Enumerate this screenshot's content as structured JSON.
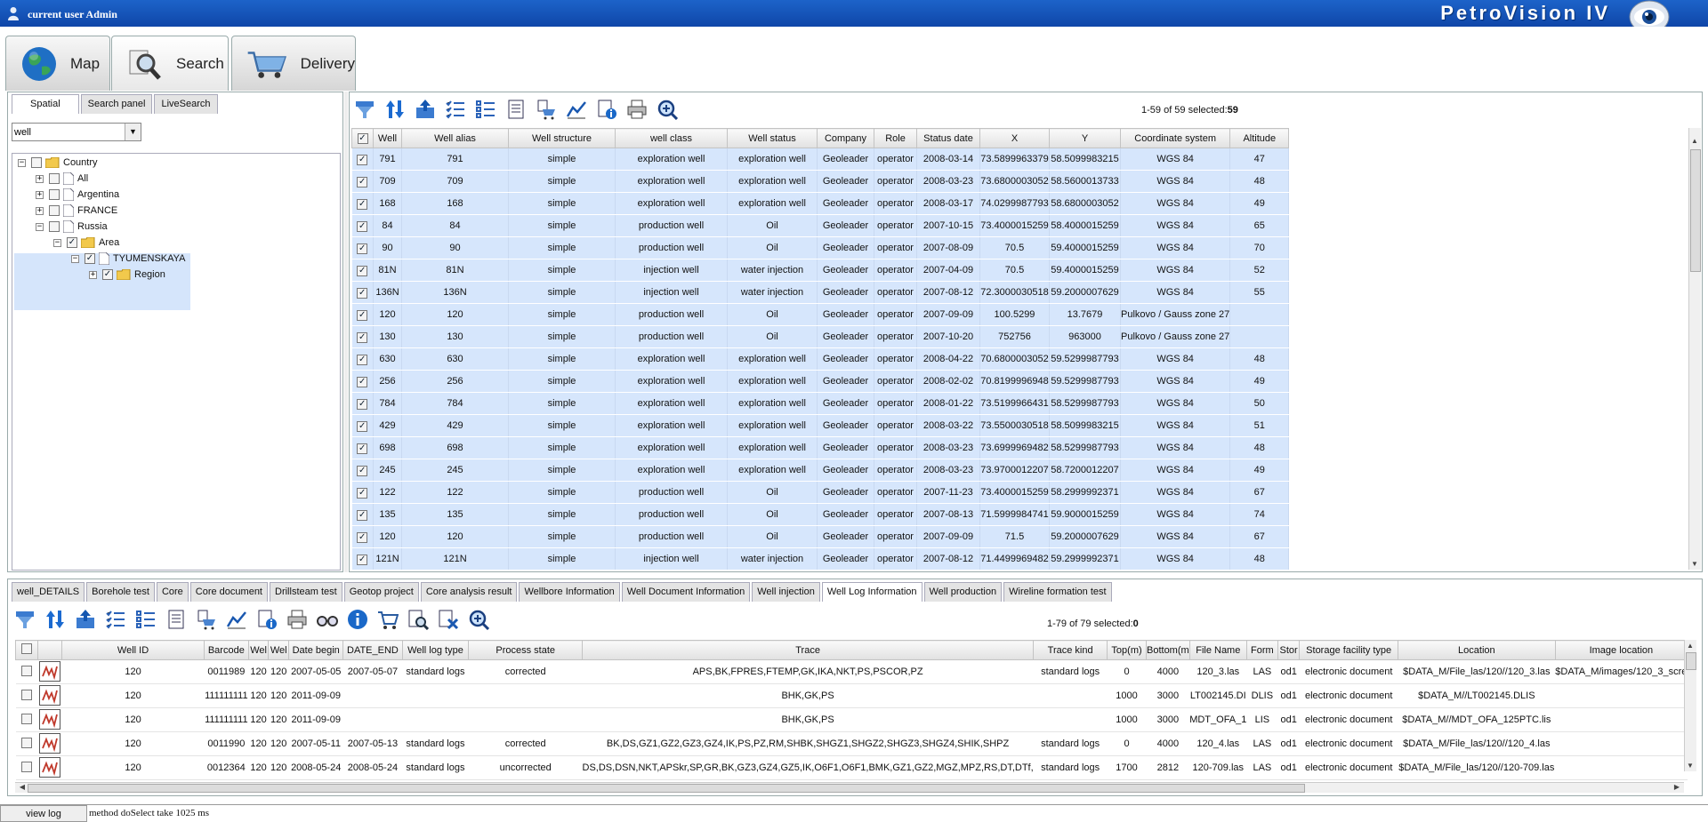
{
  "app": {
    "user_label": "current user Admin",
    "brand": "PetroVision IV"
  },
  "main_tabs": [
    {
      "label": "Map",
      "icon": "globe-icon"
    },
    {
      "label": "Search",
      "icon": "search-magnifier-icon"
    },
    {
      "label": "Delivery",
      "icon": "shopping-cart-icon"
    }
  ],
  "left": {
    "tabs": [
      "Spatial",
      "Search panel",
      "LiveSearch"
    ],
    "combo_value": "well",
    "tree": [
      "Country",
      "All",
      "Argentina",
      "FRANCE",
      "Russia",
      "Area",
      "TYUMENSKAYA",
      "Region"
    ]
  },
  "wells": {
    "selection_prefix": "1-59 of 59 selected:",
    "selection_count": "59",
    "columns": [
      "Well",
      "Well alias",
      "Well structure",
      "well class",
      "Well status",
      "Company",
      "Role",
      "Status date",
      "X",
      "Y",
      "Coordinate system",
      "Altitude"
    ],
    "rows": [
      [
        "791",
        "791",
        "simple",
        "exploration well",
        "exploration well",
        "Geoleader",
        "operator",
        "2008-03-14",
        "73.5899963379",
        "58.5099983215",
        "WGS 84",
        "47"
      ],
      [
        "709",
        "709",
        "simple",
        "exploration well",
        "exploration well",
        "Geoleader",
        "operator",
        "2008-03-23",
        "73.6800003052",
        "58.5600013733",
        "WGS 84",
        "48"
      ],
      [
        "168",
        "168",
        "simple",
        "exploration well",
        "exploration well",
        "Geoleader",
        "operator",
        "2008-03-17",
        "74.0299987793",
        "58.6800003052",
        "WGS 84",
        "49"
      ],
      [
        "84",
        "84",
        "simple",
        "production well",
        "Oil",
        "Geoleader",
        "operator",
        "2007-10-15",
        "73.4000015259",
        "58.4000015259",
        "WGS 84",
        "65"
      ],
      [
        "90",
        "90",
        "simple",
        "production well",
        "Oil",
        "Geoleader",
        "operator",
        "2007-08-09",
        "70.5",
        "59.4000015259",
        "WGS 84",
        "70"
      ],
      [
        "81N",
        "81N",
        "simple",
        "injection well",
        "water injection",
        "Geoleader",
        "operator",
        "2007-04-09",
        "70.5",
        "59.4000015259",
        "WGS 84",
        "52"
      ],
      [
        "136N",
        "136N",
        "simple",
        "injection well",
        "water injection",
        "Geoleader",
        "operator",
        "2007-08-12",
        "72.3000030518",
        "59.2000007629",
        "WGS 84",
        "55"
      ],
      [
        "120",
        "120",
        "simple",
        "production well",
        "Oil",
        "Geoleader",
        "operator",
        "2007-09-09",
        "100.5299",
        "13.7679",
        "Pulkovo / Gauss zone 27",
        ""
      ],
      [
        "130",
        "130",
        "simple",
        "production well",
        "Oil",
        "Geoleader",
        "operator",
        "2007-10-20",
        "752756",
        "963000",
        "Pulkovo / Gauss zone 27",
        ""
      ],
      [
        "630",
        "630",
        "simple",
        "exploration well",
        "exploration well",
        "Geoleader",
        "operator",
        "2008-04-22",
        "70.6800003052",
        "59.5299987793",
        "WGS 84",
        "48"
      ],
      [
        "256",
        "256",
        "simple",
        "exploration well",
        "exploration well",
        "Geoleader",
        "operator",
        "2008-02-02",
        "70.8199996948",
        "59.5299987793",
        "WGS 84",
        "49"
      ],
      [
        "784",
        "784",
        "simple",
        "exploration well",
        "exploration well",
        "Geoleader",
        "operator",
        "2008-01-22",
        "73.5199966431",
        "58.5299987793",
        "WGS 84",
        "50"
      ],
      [
        "429",
        "429",
        "simple",
        "exploration well",
        "exploration well",
        "Geoleader",
        "operator",
        "2008-03-22",
        "73.5500030518",
        "58.5099983215",
        "WGS 84",
        "51"
      ],
      [
        "698",
        "698",
        "simple",
        "exploration well",
        "exploration well",
        "Geoleader",
        "operator",
        "2008-03-23",
        "73.6999969482",
        "58.5299987793",
        "WGS 84",
        "48"
      ],
      [
        "245",
        "245",
        "simple",
        "exploration well",
        "exploration well",
        "Geoleader",
        "operator",
        "2008-03-23",
        "73.9700012207",
        "58.7200012207",
        "WGS 84",
        "49"
      ],
      [
        "122",
        "122",
        "simple",
        "production well",
        "Oil",
        "Geoleader",
        "operator",
        "2007-11-23",
        "73.4000015259",
        "58.2999992371",
        "WGS 84",
        "67"
      ],
      [
        "135",
        "135",
        "simple",
        "production well",
        "Oil",
        "Geoleader",
        "operator",
        "2007-08-13",
        "71.5999984741",
        "59.9000015259",
        "WGS 84",
        "74"
      ],
      [
        "120",
        "120",
        "simple",
        "production well",
        "Oil",
        "Geoleader",
        "operator",
        "2007-09-09",
        "71.5",
        "59.2000007629",
        "WGS 84",
        "67"
      ],
      [
        "121N",
        "121N",
        "simple",
        "injection well",
        "water injection",
        "Geoleader",
        "operator",
        "2007-08-12",
        "71.4499969482",
        "59.2999992371",
        "WGS 84",
        "48"
      ]
    ]
  },
  "bottom": {
    "tabs": [
      "well_DETAILS",
      "Borehole test",
      "Core",
      "Core document",
      "Drillsteam test",
      "Geotop project",
      "Core analysis result",
      "Wellbore Information",
      "Well Document Information",
      "Well injection",
      "Well Log Information",
      "Well production",
      "Wireline formation test"
    ],
    "active_tab": "Well Log Information",
    "selection_prefix": "1-79 of 79 selected:",
    "selection_count": "0",
    "columns": [
      "Well ID",
      "Barcode",
      "Wel",
      "Wel",
      "Date begin",
      "DATE_END",
      "Well log type",
      "Process state",
      "Trace",
      "Trace kind",
      "Top(m)",
      "Bottom(m",
      "File Name",
      "Form",
      "Stor",
      "Storage facility type",
      "Location",
      "Image location"
    ],
    "rows": [
      [
        "120",
        "0011989",
        "120",
        "120",
        "2007-05-05",
        "2007-05-07",
        "standard logs",
        "corrected",
        "APS,BK,FPRES,FTEMP,GK,IKA,NKT,PS,PSCOR,PZ",
        "standard logs",
        "0",
        "4000",
        "120_3.las",
        "LAS",
        "od1",
        "electronic document",
        "$DATA_M/File_las/120//120_3.las",
        "$DATA_M/images/120_3_scre"
      ],
      [
        "120",
        "111111111",
        "120",
        "120",
        "2011-09-09",
        "",
        "",
        "",
        "BHK,GK,PS",
        "",
        "1000",
        "3000",
        "LT002145.DI",
        "DLIS",
        "od1",
        "electronic document",
        "$DATA_M//LT002145.DLIS",
        ""
      ],
      [
        "120",
        "111111111",
        "120",
        "120",
        "2011-09-09",
        "",
        "",
        "",
        "BHK,GK,PS",
        "",
        "1000",
        "3000",
        "MDT_OFA_1",
        "LIS",
        "od1",
        "electronic document",
        "$DATA_M//MDT_OFA_125PTC.lis",
        ""
      ],
      [
        "120",
        "0011990",
        "120",
        "120",
        "2007-05-11",
        "2007-05-13",
        "standard logs",
        "corrected",
        "BK,DS,GZ1,GZ2,GZ3,GZ4,IK,PS,PZ,RM,SHBK,SHGZ1,SHGZ2,SHGZ3,SHGZ4,SHIK,SHPZ",
        "standard logs",
        "0",
        "4000",
        "120_4.las",
        "LAS",
        "od1",
        "electronic document",
        "$DATA_M/File_las/120//120_4.las",
        ""
      ],
      [
        "120",
        "0012364",
        "120",
        "120",
        "2008-05-24",
        "2008-05-24",
        "standard logs",
        "uncorrected",
        "DS,DS,DSN,NKT,APSkr,SP,GR,BK,GZ3,GZ4,GZ5,IK,O6F1,O6F1,BMK,GZ1,GZ2,MGZ,MPZ,RS,DT,DTf,",
        "standard logs",
        "1700",
        "2812",
        "120-709.las",
        "LAS",
        "od1",
        "electronic document",
        "$DATA_M/File_las/120//120-709.las",
        ""
      ]
    ]
  },
  "status": {
    "view_log": "view log",
    "message": "method doSelect take 1025 ms"
  }
}
